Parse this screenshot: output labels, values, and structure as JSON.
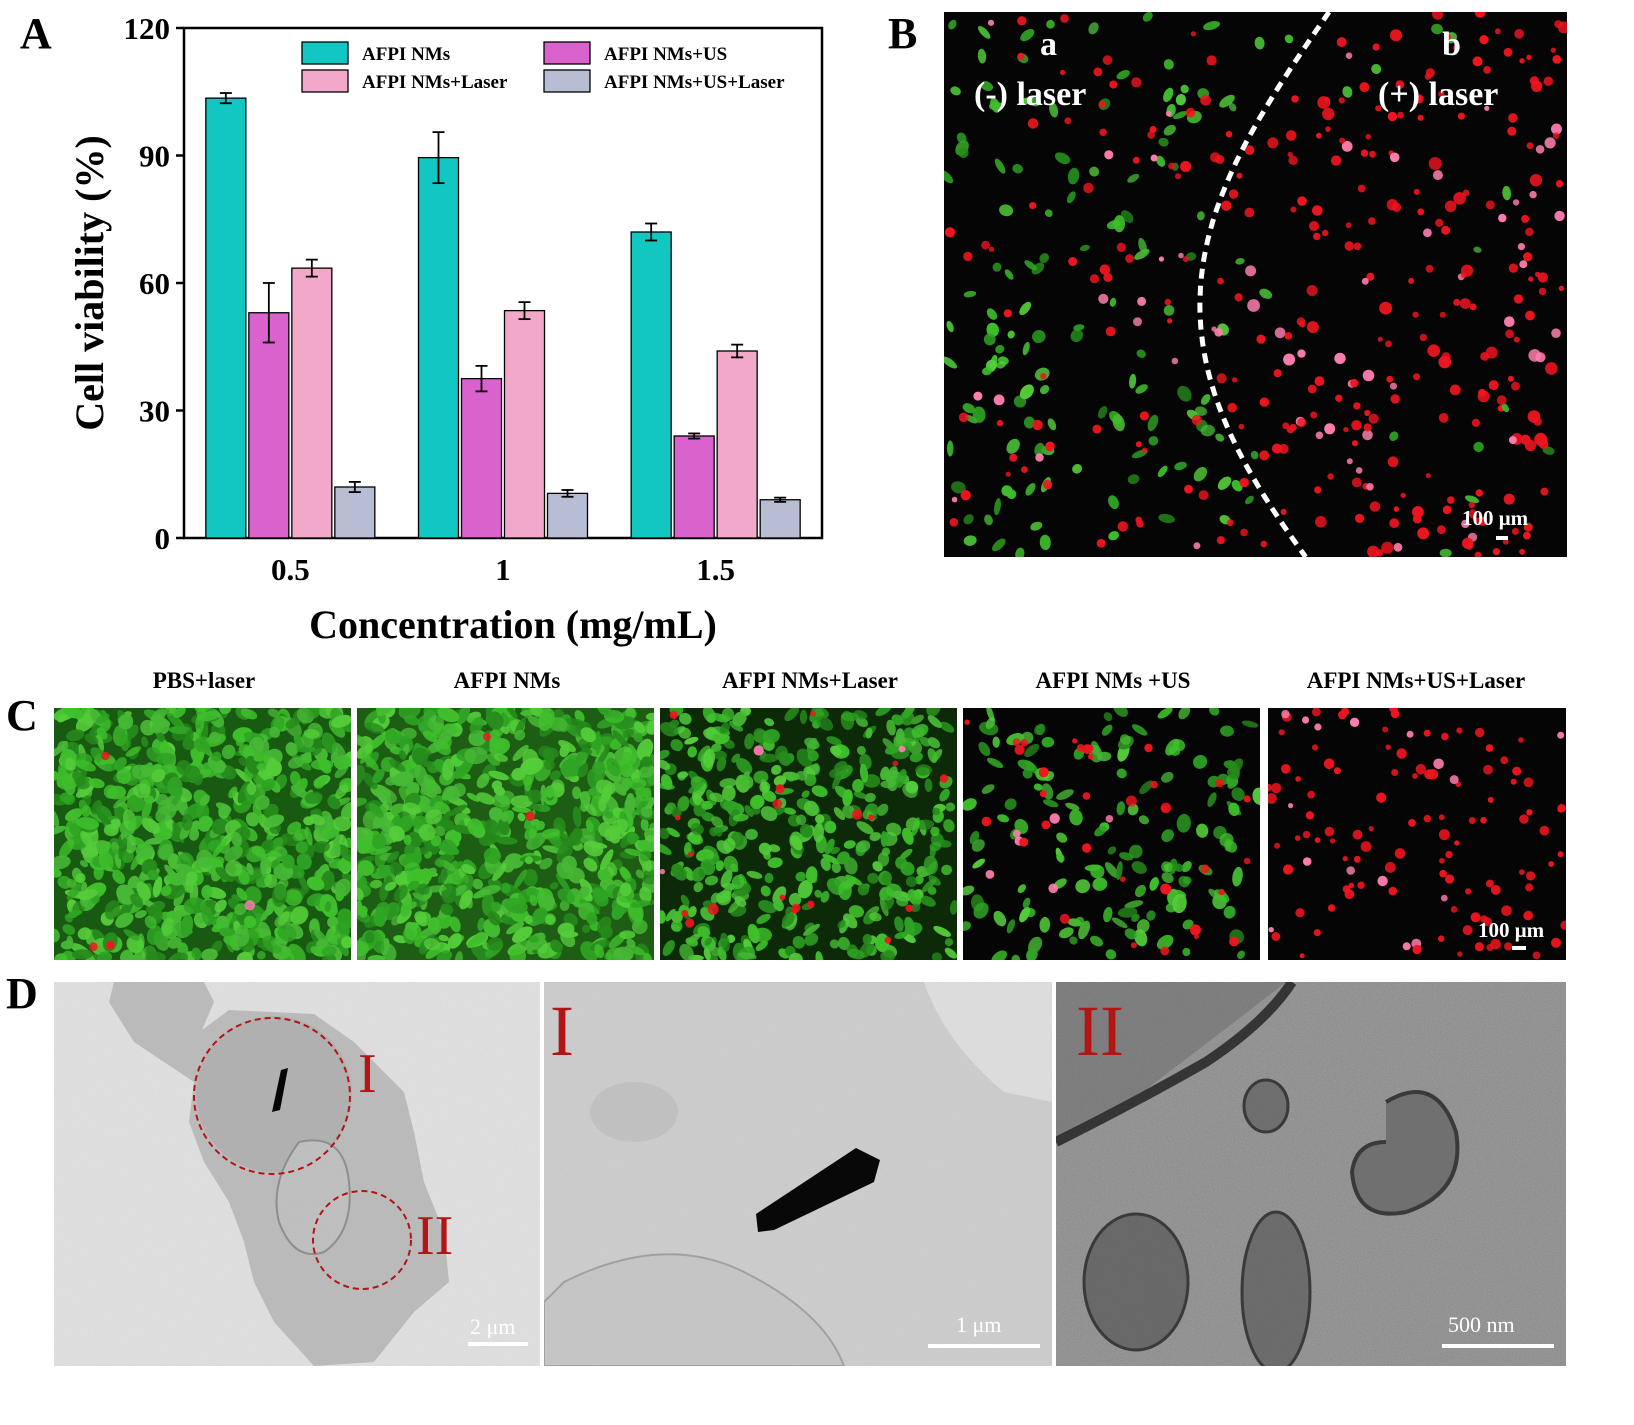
{
  "panels": {
    "A": "A",
    "B": "B",
    "C": "C",
    "D": "D"
  },
  "chart_data": {
    "type": "bar",
    "xlabel": "Concentration (mg/mL)",
    "ylabel": "Cell viability (%)",
    "ylim": [
      0,
      120
    ],
    "yticks": [
      "0",
      "30",
      "60",
      "90",
      "120"
    ],
    "categories": [
      "0.5",
      "1",
      "1.5"
    ],
    "legend_placement": "top",
    "series": [
      {
        "name": "AFPI NMs",
        "color": "#12c6c2",
        "values": [
          103.5,
          89.5,
          72
        ],
        "errors": [
          1.2,
          6,
          2
        ]
      },
      {
        "name": "AFPI NMs+US",
        "color": "#d962cc",
        "values": [
          53,
          37.5,
          24
        ],
        "errors": [
          7,
          3,
          0.6
        ]
      },
      {
        "name": "AFPI NMs+Laser",
        "color": "#f1a8c9",
        "values": [
          63.5,
          53.5,
          44
        ],
        "errors": [
          2,
          2,
          1.5
        ]
      },
      {
        "name": "AFPI NMs+US+Laser",
        "color": "#b7bdd2",
        "values": [
          12,
          10.5,
          9
        ],
        "errors": [
          1.2,
          0.8,
          0.5
        ]
      }
    ]
  },
  "panelB": {
    "left_letter": "a",
    "left_label": "(-) laser",
    "right_letter": "b",
    "right_label": "(+) laser",
    "scale": "100 μm"
  },
  "panelC": {
    "titles": [
      "PBS+laser",
      "AFPI NMs",
      "AFPI NMs+Laser",
      "AFPI NMs +US",
      "AFPI NMs+US+Laser"
    ],
    "scale": "100 μm"
  },
  "panelD": {
    "label_I": "I",
    "label_II": "II",
    "scale1": "2 μm",
    "scale2": "1 μm",
    "scale3": "500 nm"
  },
  "colors": {
    "live": "#36b02d",
    "dead": "#ee1a22",
    "tem_bg": "#dadada",
    "roi": "#b31515"
  }
}
